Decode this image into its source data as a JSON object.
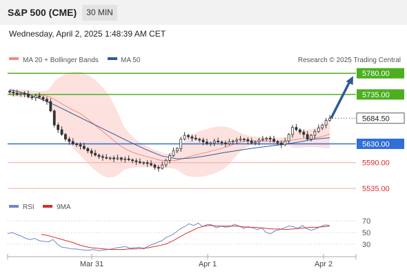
{
  "header": {
    "title": "S&P 500 (CME)",
    "timeframe": "30 MIN"
  },
  "datetime": "Wednesday, April 2, 2025 1:48:39 AM CET",
  "chart_data": [
    {
      "type": "line",
      "title": "S&P 500 (CME)",
      "legend": [
        {
          "name": "MA 20 + Bollinger Bands",
          "color": "#f28b82"
        },
        {
          "name": "MA 50",
          "color": "#2f5a99"
        }
      ],
      "legend_placement": "top-left",
      "credit": "Research © 2025 Trading Central",
      "ylim": [
        5525,
        5795
      ],
      "x_ticks": [
        "Mar 31",
        "Apr 1",
        "Apr 2"
      ],
      "series": [
        {
          "name": "Price (30 min candles, approx. close)",
          "color": "#333333",
          "values": [
            5740,
            5738,
            5735,
            5737,
            5736,
            5730,
            5728,
            5732,
            5729,
            5725,
            5720,
            5700,
            5670,
            5660,
            5650,
            5640,
            5635,
            5630,
            5628,
            5625,
            5620,
            5615,
            5610,
            5606,
            5603,
            5601,
            5600,
            5600,
            5598,
            5600,
            5597,
            5598,
            5596,
            5594,
            5592,
            5590,
            5590,
            5588,
            5585,
            5580,
            5578,
            5585,
            5595,
            5605,
            5615,
            5620,
            5640,
            5648,
            5645,
            5642,
            5640,
            5638,
            5634,
            5630,
            5632,
            5636,
            5634,
            5632,
            5630,
            5634,
            5636,
            5638,
            5640,
            5639,
            5636,
            5632,
            5634,
            5638,
            5640,
            5642,
            5640,
            5635,
            5632,
            5628,
            5636,
            5650,
            5665,
            5660,
            5655,
            5650,
            5640,
            5648,
            5656,
            5664,
            5670,
            5680,
            5684
          ]
        },
        {
          "name": "MA 50",
          "color": "#2f5a99",
          "values": [
            5745,
            5738,
            5726,
            5712,
            5696,
            5680,
            5664,
            5648,
            5632,
            5617,
            5604,
            5598,
            5600,
            5605,
            5611,
            5616,
            5621,
            5625,
            5629,
            5634,
            5640,
            5643
          ]
        }
      ],
      "annotations": [
        {
          "label": "5780.00",
          "value": 5780,
          "kind": "resistance",
          "color": "#4caf20"
        },
        {
          "label": "5735.00",
          "value": 5735,
          "kind": "resistance",
          "color": "#4caf20"
        },
        {
          "label": "5684.50",
          "value": 5684.5,
          "kind": "last price",
          "color": "#333333"
        },
        {
          "label": "5630.00",
          "value": 5630,
          "kind": "pivot",
          "color": "#2f6fd6"
        },
        {
          "label": "5590.00",
          "value": 5590,
          "kind": "support",
          "color": "#d32f2f"
        },
        {
          "label": "5535.00",
          "value": 5535,
          "kind": "support",
          "color": "#d32f2f"
        }
      ],
      "forecast_arrow": {
        "from": 5684.5,
        "to": 5780,
        "color": "#2f5a99"
      }
    },
    {
      "type": "line",
      "title": "RSI",
      "legend": [
        {
          "name": "RSI",
          "color": "#6f86c9"
        },
        {
          "name": "9MA",
          "color": "#d32f2f"
        }
      ],
      "ylim": [
        10,
        90
      ],
      "y_ticks": [
        70,
        50,
        30
      ],
      "series": [
        {
          "name": "RSI",
          "color": "#6f86c9",
          "values": [
            48,
            50,
            47,
            44,
            40,
            38,
            40,
            36,
            35,
            34,
            38,
            30,
            25,
            24,
            22,
            22,
            21,
            20,
            20,
            21,
            19,
            20,
            21,
            22,
            24,
            25,
            26,
            23,
            24,
            25,
            22,
            27,
            30,
            33,
            36,
            42,
            45,
            50,
            56,
            60,
            65,
            62,
            66,
            60,
            64,
            63,
            58,
            61,
            59,
            60,
            64,
            61,
            57,
            60,
            58,
            55,
            58,
            50,
            48,
            53,
            55,
            58,
            61,
            60,
            57,
            62,
            56,
            54,
            57,
            60,
            63,
            62
          ]
        },
        {
          "name": "9MA",
          "color": "#d32f2f",
          "values": [
            47,
            45,
            42,
            39,
            36,
            33,
            29,
            26,
            24,
            23,
            22,
            21,
            21,
            21,
            22,
            22,
            23,
            24,
            26,
            28,
            31,
            36,
            42,
            48,
            53,
            58,
            61,
            62,
            61,
            61,
            61,
            61,
            60,
            59,
            59,
            58,
            57,
            56,
            56,
            55,
            56,
            57,
            58,
            59,
            59,
            60,
            61
          ]
        }
      ]
    }
  ]
}
